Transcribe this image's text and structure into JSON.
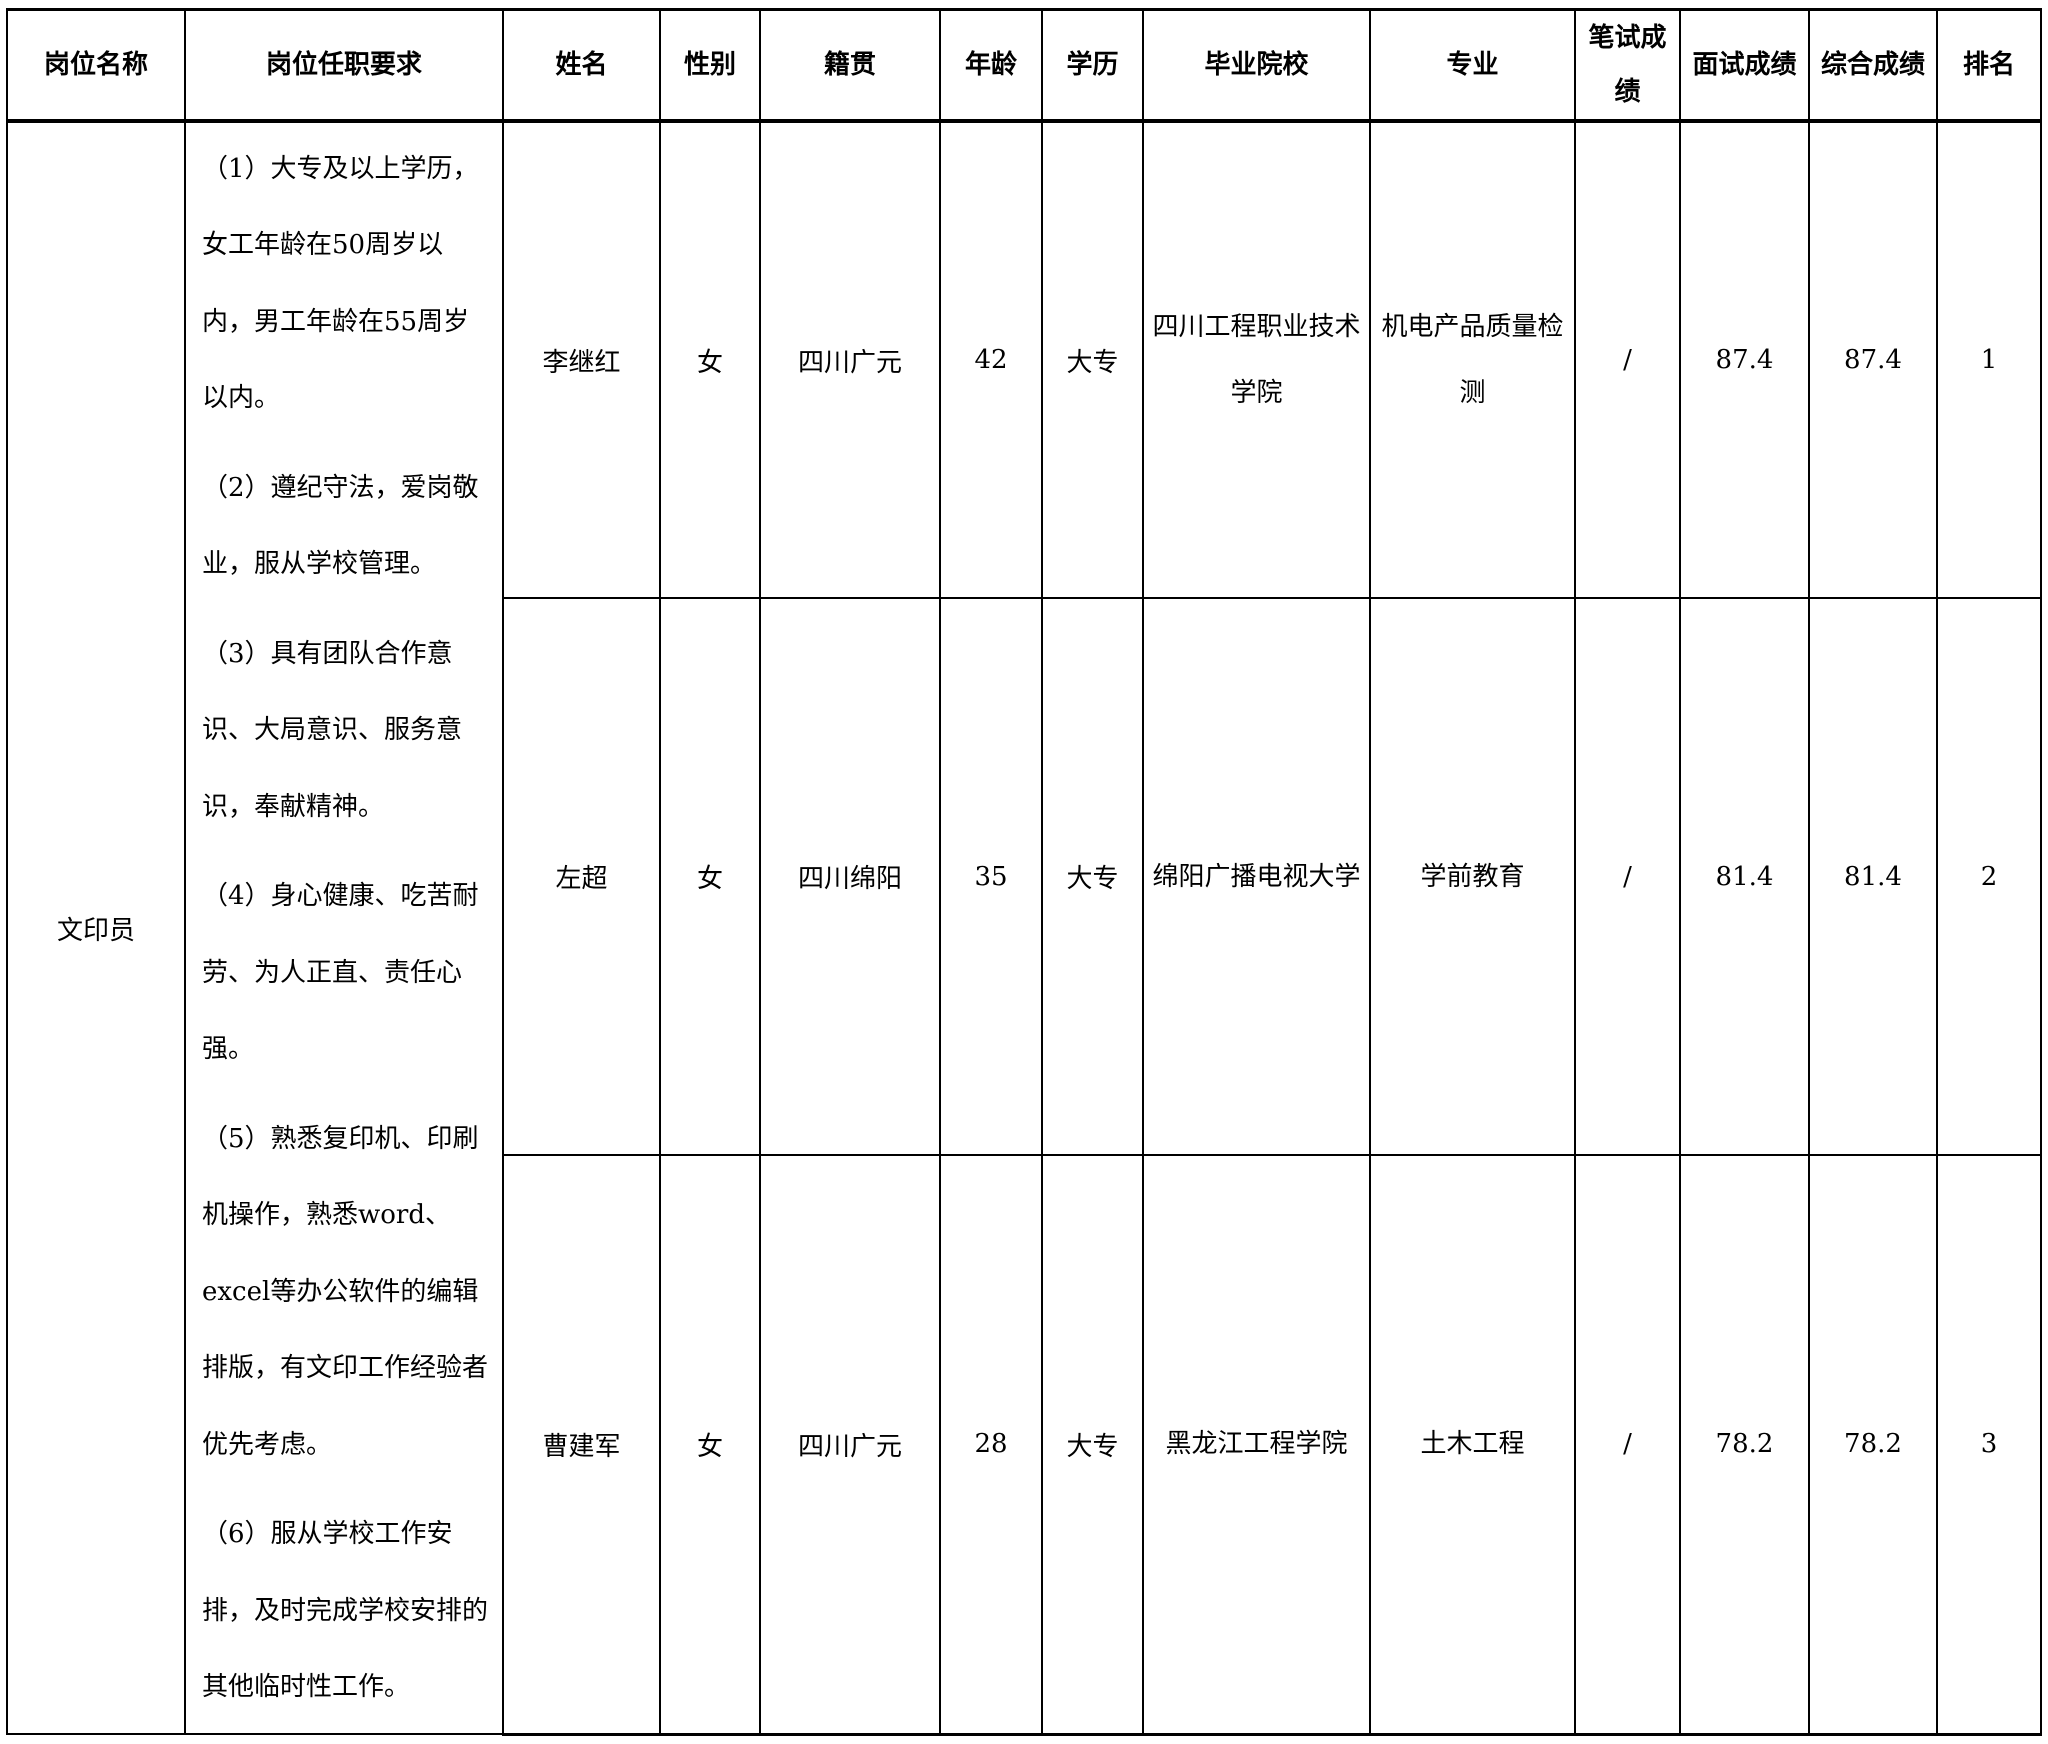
{
  "headers": [
    "岗位名称",
    "岗位任职要求",
    "姓名",
    "性别",
    "籍贯",
    "年龄",
    "学历",
    "毕业院校",
    "专业",
    "笔试成绩",
    "面试成绩",
    "综合成绩",
    "排名"
  ],
  "position": "文印员",
  "requirements": [
    "（1）大专及以上学历，女工年龄在50周岁以内，男工年龄在55周岁以内。",
    "（2）遵纪守法，爱岗敬业，服从学校管理。",
    "（3）具有团队合作意识、大局意识、服务意识，奉献精神。",
    "（4）身心健康、吃苦耐劳、为人正直、责任心强。",
    "（5）熟悉复印机、印刷机操作，熟悉word、excel等办公软件的编辑排版，有文印工作经验者优先考虑。",
    "（6）服从学校工作安排，及时完成学校安排的其他临时性工作。"
  ],
  "rows": [
    {
      "name": "李继红",
      "gender": "女",
      "origin": "四川广元",
      "age": "42",
      "education": "大专",
      "school": "四川工程职业技术学院",
      "major": "机电产品质量检测",
      "written": "/",
      "interview": "87.4",
      "total": "87.4",
      "rank": "1"
    },
    {
      "name": "左超",
      "gender": "女",
      "origin": "四川绵阳",
      "age": "35",
      "education": "大专",
      "school": "绵阳广播电视大学",
      "major": "学前教育",
      "written": "/",
      "interview": "81.4",
      "total": "81.4",
      "rank": "2"
    },
    {
      "name": "曹建军",
      "gender": "女",
      "origin": "四川广元",
      "age": "28",
      "education": "大专",
      "school": "黑龙江工程学院",
      "major": "土木工程",
      "written": "/",
      "interview": "78.2",
      "total": "78.2",
      "rank": "3"
    }
  ]
}
